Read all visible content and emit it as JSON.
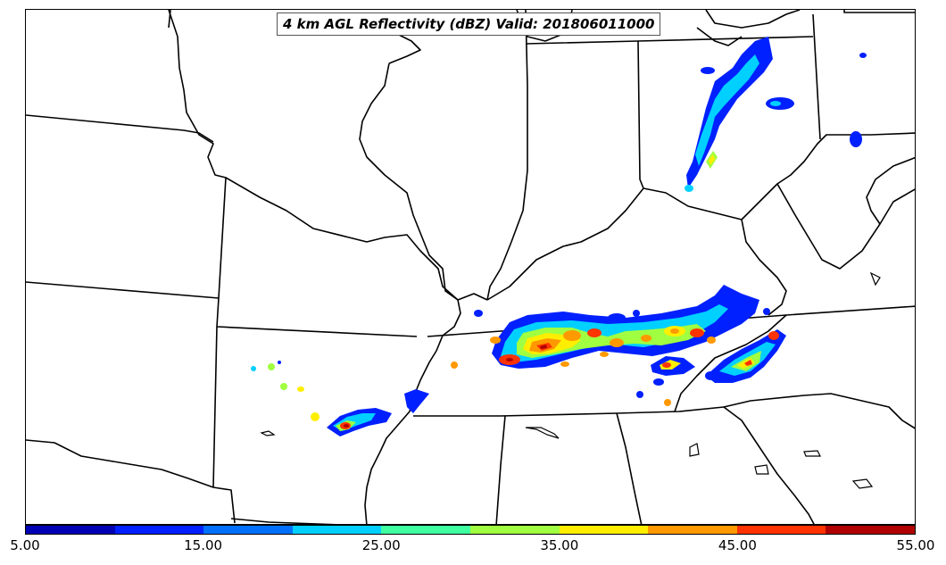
{
  "title": "4 km AGL Reflectivity (dBZ) Valid: 201806011000",
  "colorbar": {
    "colors": [
      "#0000b4",
      "#0020ff",
      "#0070ff",
      "#00d0ff",
      "#40ffa0",
      "#a0ff40",
      "#ffee00",
      "#ff9900",
      "#ff3300",
      "#b00000"
    ],
    "tick_labels": [
      "5.00",
      "15.00",
      "25.00",
      "35.00",
      "45.00",
      "55.00"
    ]
  },
  "reflectivity_colors": {
    "light": "#0020ff",
    "moderate": "#00d0ff",
    "medium": "#a0ff40",
    "heavy": "#ffee00",
    "intense": "#ff3300",
    "extreme": "#b00000"
  }
}
